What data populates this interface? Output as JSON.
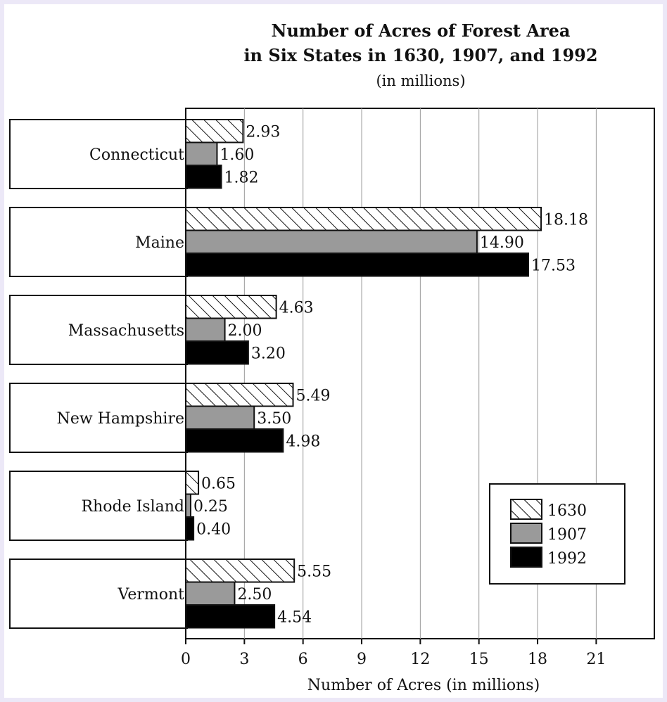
{
  "chart_data": {
    "type": "bar",
    "orientation": "horizontal",
    "title_line1": "Number of Acres of Forest Area",
    "title_line2": "in Six States in 1630, 1907, and 1992",
    "subtitle": "(in millions)",
    "xlabel": "Number of Acres (in millions)",
    "ylabel": "",
    "xlim": [
      0,
      24
    ],
    "xticks": [
      0,
      3,
      6,
      9,
      12,
      15,
      18,
      21
    ],
    "grid": true,
    "legend_position": "bottom-right",
    "categories": [
      "Connecticut",
      "Maine",
      "Massachusetts",
      "New Hampshire",
      "Rhode Island",
      "Vermont"
    ],
    "series": [
      {
        "name": "1630",
        "style": "hatched",
        "color": "#ffffff",
        "values": [
          2.93,
          18.18,
          4.63,
          5.49,
          0.65,
          5.55
        ],
        "labels": [
          "2.93",
          "18.18",
          "4.63",
          "5.49",
          "0.65",
          "5.55"
        ]
      },
      {
        "name": "1907",
        "style": "gray",
        "color": "#9a9a9a",
        "values": [
          1.6,
          14.9,
          2.0,
          3.5,
          0.25,
          2.5
        ],
        "labels": [
          "1.60",
          "14.90",
          "2.00",
          "3.50",
          "0.25",
          "2.50"
        ]
      },
      {
        "name": "1992",
        "style": "solid",
        "color": "#000000",
        "values": [
          1.82,
          17.53,
          3.2,
          4.98,
          0.4,
          4.54
        ],
        "labels": [
          "1.82",
          "17.53",
          "3.20",
          "4.98",
          "0.40",
          "4.54"
        ]
      }
    ]
  }
}
